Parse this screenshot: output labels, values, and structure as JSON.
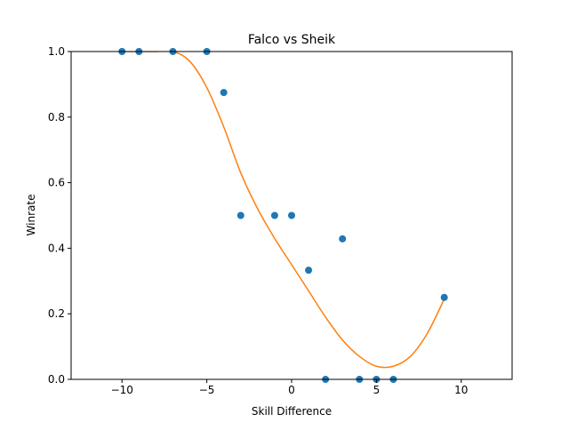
{
  "chart_data": {
    "type": "scatter",
    "title": "Falco vs Sheik",
    "xlabel": "Skill Difference",
    "ylabel": "Winrate",
    "xlim": [
      -13,
      13
    ],
    "ylim": [
      0,
      1
    ],
    "grid": false,
    "x_ticks": [
      -10,
      -5,
      0,
      5,
      10
    ],
    "x_tick_labels": [
      "−10",
      "−5",
      "0",
      "5",
      "10"
    ],
    "y_ticks": [
      0.0,
      0.2,
      0.4,
      0.6,
      0.8,
      1.0
    ],
    "y_tick_labels": [
      "0.0",
      "0.2",
      "0.4",
      "0.6",
      "0.8",
      "1.0"
    ],
    "series": [
      {
        "kind": "scatter",
        "color": "#1f77b4",
        "x": [
          -10,
          -9,
          -7,
          -5,
          -4,
          -3,
          -1,
          0,
          1,
          2,
          3,
          4,
          5,
          6,
          9
        ],
        "y": [
          1.0,
          1.0,
          1.0,
          1.0,
          0.875,
          0.5,
          0.5,
          0.5,
          0.333,
          0.0,
          0.4286,
          0.0,
          0.0,
          0.0,
          0.25
        ]
      },
      {
        "kind": "line",
        "color": "#ff7f0e",
        "x": [
          -10,
          -9,
          -8,
          -7,
          -6,
          -5,
          -4,
          -3,
          -2,
          -1,
          0,
          1,
          2,
          3,
          4,
          5,
          6,
          7,
          8,
          9
        ],
        "y": [
          1.0,
          1.0,
          1.0,
          1.0,
          0.97,
          0.89,
          0.77,
          0.63,
          0.52,
          0.43,
          0.35,
          0.27,
          0.19,
          0.12,
          0.07,
          0.04,
          0.04,
          0.07,
          0.14,
          0.245
        ]
      }
    ]
  }
}
